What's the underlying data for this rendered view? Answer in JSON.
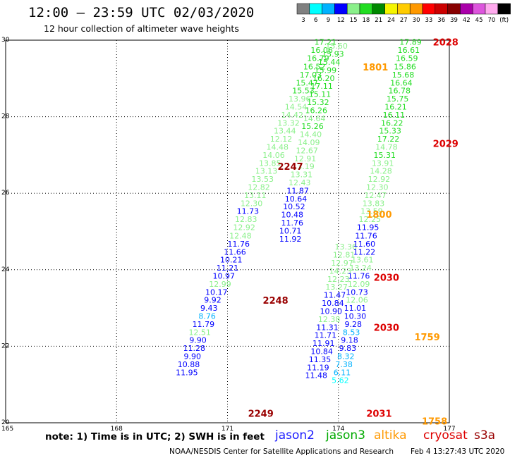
{
  "title": "12:00 – 23:59 UTC 02/03/2020",
  "subtitle": "12 hour collection of altimeter wave heights",
  "note": "note: 1) Time is in UTC; 2) SWH is in feet",
  "credit": "NOAA/NESDIS Center for Satellite Applications and Research",
  "credit_time": "Feb  4 13:27:43 UTC 2020",
  "satellites": [
    {
      "name": "jason2",
      "color": "#1a1aff"
    },
    {
      "name": "jason3",
      "color": "#00aa00"
    },
    {
      "name": "altika",
      "color": "#ff9900"
    },
    {
      "name": "cryosat",
      "color": "#dd0000"
    },
    {
      "name": "s3a",
      "color": "#990000"
    }
  ],
  "colorbar": {
    "labels": [
      "3",
      "6",
      "9",
      "12",
      "15",
      "18",
      "21",
      "24",
      "27",
      "30",
      "33",
      "36",
      "39",
      "42",
      "45",
      "70",
      "(ft)"
    ],
    "colors": [
      "#808080",
      "#00ffff",
      "#00b2ff",
      "#0000ff",
      "#8af08a",
      "#22dd22",
      "#008800",
      "#f5f500",
      "#ffcc00",
      "#ff9900",
      "#ff0000",
      "#cc0000",
      "#880000",
      "#aa00aa",
      "#dd55dd",
      "#ffaaee",
      "#000000"
    ]
  },
  "chart_data": {
    "type": "scatter",
    "title": "12:00 – 23:59 UTC 02/03/2020",
    "subtitle": "12 hour collection of altimeter wave heights",
    "xlim": [
      165,
      177
    ],
    "ylim": [
      20,
      30
    ],
    "xticks": [
      165,
      168,
      171,
      174,
      177
    ],
    "yticks": [
      20,
      22,
      24,
      26,
      28,
      30
    ],
    "grid": true,
    "units": "ft",
    "point_labels": [
      {
        "x": 176.9,
        "y": 29.95,
        "text": "2028",
        "color": "#dd0000"
      },
      {
        "x": 175.0,
        "y": 29.3,
        "text": "1801",
        "color": "#ff9900"
      },
      {
        "x": 176.9,
        "y": 27.3,
        "text": "2029",
        "color": "#dd0000"
      },
      {
        "x": 172.7,
        "y": 26.7,
        "text": "2247",
        "color": "#990000"
      },
      {
        "x": 175.1,
        "y": 25.45,
        "text": "1800",
        "color": "#ff9900"
      },
      {
        "x": 175.3,
        "y": 23.8,
        "text": "2030",
        "color": "#dd0000"
      },
      {
        "x": 172.3,
        "y": 23.2,
        "text": "2248",
        "color": "#990000"
      },
      {
        "x": 175.3,
        "y": 22.5,
        "text": "2030",
        "color": "#dd0000"
      },
      {
        "x": 176.4,
        "y": 22.25,
        "text": "1759",
        "color": "#ff9900"
      },
      {
        "x": 171.9,
        "y": 20.25,
        "text": "2249",
        "color": "#990000"
      },
      {
        "x": 175.1,
        "y": 20.25,
        "text": "2031",
        "color": "#dd0000"
      },
      {
        "x": 176.6,
        "y": 20.05,
        "text": "1758",
        "color": "#ff9900"
      }
    ],
    "series": [
      {
        "satellite": "s3a",
        "points": [
          {
            "x": 173.65,
            "y": 29.95,
            "v": "17.21",
            "c": "#22dd22"
          },
          {
            "x": 173.55,
            "y": 29.74,
            "v": "16.06",
            "c": "#22dd22"
          },
          {
            "x": 173.45,
            "y": 29.53,
            "v": "16.79",
            "c": "#22dd22"
          },
          {
            "x": 173.35,
            "y": 29.31,
            "v": "16.52",
            "c": "#22dd22"
          },
          {
            "x": 173.25,
            "y": 29.1,
            "v": "17.03",
            "c": "#22dd22"
          },
          {
            "x": 173.15,
            "y": 28.89,
            "v": "15.47",
            "c": "#22dd22"
          },
          {
            "x": 173.05,
            "y": 28.68,
            "v": "15.53",
            "c": "#22dd22"
          },
          {
            "x": 172.95,
            "y": 28.47,
            "v": "13.96",
            "c": "#8af08a"
          },
          {
            "x": 172.85,
            "y": 28.26,
            "v": "14.54",
            "c": "#8af08a"
          },
          {
            "x": 172.75,
            "y": 28.05,
            "v": "14.42",
            "c": "#8af08a"
          },
          {
            "x": 172.65,
            "y": 27.84,
            "v": "13.32",
            "c": "#8af08a"
          },
          {
            "x": 172.55,
            "y": 27.63,
            "v": "13.44",
            "c": "#8af08a"
          },
          {
            "x": 172.45,
            "y": 27.42,
            "v": "12.12",
            "c": "#8af08a"
          },
          {
            "x": 172.35,
            "y": 27.21,
            "v": "14.48",
            "c": "#8af08a"
          },
          {
            "x": 172.25,
            "y": 27.0,
            "v": "14.06",
            "c": "#8af08a"
          },
          {
            "x": 172.15,
            "y": 26.79,
            "v": "13.85",
            "c": "#8af08a"
          },
          {
            "x": 172.05,
            "y": 26.58,
            "v": "13.13",
            "c": "#8af08a"
          },
          {
            "x": 171.95,
            "y": 26.37,
            "v": "13.53",
            "c": "#8af08a"
          },
          {
            "x": 171.85,
            "y": 26.16,
            "v": "12.82",
            "c": "#8af08a"
          },
          {
            "x": 171.75,
            "y": 25.95,
            "v": "13.11",
            "c": "#8af08a"
          },
          {
            "x": 171.65,
            "y": 25.74,
            "v": "12.30",
            "c": "#8af08a"
          },
          {
            "x": 171.55,
            "y": 25.53,
            "v": "11.73",
            "c": "#0000ff"
          },
          {
            "x": 171.5,
            "y": 25.32,
            "v": "12.83",
            "c": "#8af08a"
          },
          {
            "x": 171.45,
            "y": 25.11,
            "v": "12.92",
            "c": "#8af08a"
          },
          {
            "x": 171.35,
            "y": 24.89,
            "v": "12.48",
            "c": "#8af08a"
          },
          {
            "x": 171.3,
            "y": 24.68,
            "v": "11.76",
            "c": "#0000ff"
          },
          {
            "x": 171.2,
            "y": 24.47,
            "v": "11.66",
            "c": "#0000ff"
          },
          {
            "x": 171.1,
            "y": 24.26,
            "v": "10.21",
            "c": "#0000ff"
          },
          {
            "x": 171.0,
            "y": 24.05,
            "v": "11.21",
            "c": "#0000ff"
          },
          {
            "x": 170.9,
            "y": 23.84,
            "v": "10.97",
            "c": "#0000ff"
          },
          {
            "x": 170.8,
            "y": 23.63,
            "v": "12.99",
            "c": "#8af08a"
          },
          {
            "x": 170.7,
            "y": 23.42,
            "v": "10.17",
            "c": "#0000ff"
          },
          {
            "x": 170.6,
            "y": 23.21,
            "v": "9.92",
            "c": "#0000ff"
          },
          {
            "x": 170.5,
            "y": 23.0,
            "v": "9.43",
            "c": "#0000ff"
          },
          {
            "x": 170.45,
            "y": 22.79,
            "v": "8.76",
            "c": "#00b2ff"
          },
          {
            "x": 170.35,
            "y": 22.58,
            "v": "11.79",
            "c": "#0000ff"
          },
          {
            "x": 170.25,
            "y": 22.37,
            "v": "12.51",
            "c": "#8af08a"
          },
          {
            "x": 170.2,
            "y": 22.16,
            "v": "9.90",
            "c": "#0000ff"
          },
          {
            "x": 170.1,
            "y": 21.95,
            "v": "11.28",
            "c": "#0000ff"
          },
          {
            "x": 170.05,
            "y": 21.74,
            "v": "9.90",
            "c": "#0000ff"
          },
          {
            "x": 169.95,
            "y": 21.53,
            "v": "10.88",
            "c": "#0000ff"
          },
          {
            "x": 169.9,
            "y": 21.32,
            "v": "11.95",
            "c": "#0000ff"
          }
        ]
      },
      {
        "satellite": "altika",
        "points": [
          {
            "x": 173.95,
            "y": 29.85,
            "v": "15.60",
            "c": "#8af08a"
          },
          {
            "x": 173.85,
            "y": 29.64,
            "v": "15.93",
            "c": "#22dd22"
          },
          {
            "x": 173.75,
            "y": 29.43,
            "v": "15.44",
            "c": "#22dd22"
          },
          {
            "x": 173.65,
            "y": 29.22,
            "v": "15.99",
            "c": "#22dd22"
          },
          {
            "x": 173.6,
            "y": 29.01,
            "v": "16.20",
            "c": "#22dd22"
          },
          {
            "x": 173.55,
            "y": 28.8,
            "v": "17.11",
            "c": "#22dd22"
          },
          {
            "x": 173.5,
            "y": 28.59,
            "v": "15.11",
            "c": "#22dd22"
          },
          {
            "x": 173.45,
            "y": 28.38,
            "v": "15.32",
            "c": "#22dd22"
          },
          {
            "x": 173.4,
            "y": 28.17,
            "v": "16.26",
            "c": "#22dd22"
          },
          {
            "x": 173.35,
            "y": 27.96,
            "v": "14.64",
            "c": "#8af08a"
          },
          {
            "x": 173.3,
            "y": 27.75,
            "v": "15.26",
            "c": "#22dd22"
          },
          {
            "x": 173.25,
            "y": 27.54,
            "v": "14.40",
            "c": "#8af08a"
          },
          {
            "x": 173.2,
            "y": 27.33,
            "v": "14.09",
            "c": "#8af08a"
          },
          {
            "x": 173.15,
            "y": 27.12,
            "v": "12.67",
            "c": "#8af08a"
          },
          {
            "x": 173.1,
            "y": 26.91,
            "v": "12.91",
            "c": "#8af08a"
          },
          {
            "x": 173.05,
            "y": 26.7,
            "v": "13.19",
            "c": "#8af08a"
          },
          {
            "x": 173.0,
            "y": 26.49,
            "v": "13.31",
            "c": "#8af08a"
          },
          {
            "x": 172.95,
            "y": 26.28,
            "v": "12.43",
            "c": "#8af08a"
          },
          {
            "x": 172.9,
            "y": 26.07,
            "v": "11.87",
            "c": "#0000ff"
          },
          {
            "x": 172.85,
            "y": 25.86,
            "v": "10.64",
            "c": "#0000ff"
          },
          {
            "x": 172.8,
            "y": 25.65,
            "v": "10.52",
            "c": "#0000ff"
          },
          {
            "x": 172.75,
            "y": 25.44,
            "v": "10.48",
            "c": "#0000ff"
          },
          {
            "x": 172.75,
            "y": 25.23,
            "v": "11.76",
            "c": "#0000ff"
          },
          {
            "x": 172.7,
            "y": 25.02,
            "v": "10.71",
            "c": "#0000ff"
          },
          {
            "x": 172.7,
            "y": 24.81,
            "v": "11.92",
            "c": "#0000ff"
          }
        ]
      },
      {
        "satellite": "jason3",
        "points": [
          {
            "x": 174.2,
            "y": 24.6,
            "v": "13.36",
            "c": "#8af08a"
          },
          {
            "x": 174.15,
            "y": 24.39,
            "v": "12.81",
            "c": "#8af08a"
          },
          {
            "x": 174.1,
            "y": 24.18,
            "v": "12.97",
            "c": "#8af08a"
          },
          {
            "x": 174.05,
            "y": 23.97,
            "v": "14.23",
            "c": "#8af08a"
          },
          {
            "x": 174.0,
            "y": 23.76,
            "v": "12.23",
            "c": "#8af08a"
          },
          {
            "x": 173.95,
            "y": 23.55,
            "v": "13.27",
            "c": "#8af08a"
          },
          {
            "x": 173.9,
            "y": 23.34,
            "v": "11.47",
            "c": "#0000ff"
          },
          {
            "x": 173.85,
            "y": 23.13,
            "v": "10.84",
            "c": "#0000ff"
          },
          {
            "x": 173.8,
            "y": 22.92,
            "v": "10.90",
            "c": "#0000ff"
          },
          {
            "x": 173.75,
            "y": 22.71,
            "v": "12.38",
            "c": "#8af08a"
          },
          {
            "x": 173.7,
            "y": 22.5,
            "v": "11.31",
            "c": "#0000ff"
          },
          {
            "x": 173.65,
            "y": 22.29,
            "v": "11.71",
            "c": "#0000ff"
          },
          {
            "x": 173.6,
            "y": 22.08,
            "v": "11.91",
            "c": "#0000ff"
          },
          {
            "x": 173.55,
            "y": 21.87,
            "v": "10.84",
            "c": "#0000ff"
          },
          {
            "x": 173.5,
            "y": 21.66,
            "v": "11.35",
            "c": "#0000ff"
          },
          {
            "x": 173.45,
            "y": 21.45,
            "v": "11.19",
            "c": "#0000ff"
          },
          {
            "x": 173.4,
            "y": 21.24,
            "v": "11.48",
            "c": "#0000ff"
          }
        ]
      },
      {
        "satellite": "cryosat",
        "points": [
          {
            "x": 175.95,
            "y": 29.95,
            "v": "17.89",
            "c": "#22dd22"
          },
          {
            "x": 175.9,
            "y": 29.74,
            "v": "16.61",
            "c": "#22dd22"
          },
          {
            "x": 175.85,
            "y": 29.53,
            "v": "16.59",
            "c": "#22dd22"
          },
          {
            "x": 175.8,
            "y": 29.31,
            "v": "15.86",
            "c": "#22dd22"
          },
          {
            "x": 175.75,
            "y": 29.1,
            "v": "15.68",
            "c": "#22dd22"
          },
          {
            "x": 175.7,
            "y": 28.89,
            "v": "16.64",
            "c": "#22dd22"
          },
          {
            "x": 175.65,
            "y": 28.68,
            "v": "16.78",
            "c": "#22dd22"
          },
          {
            "x": 175.6,
            "y": 28.47,
            "v": "15.75",
            "c": "#22dd22"
          },
          {
            "x": 175.55,
            "y": 28.26,
            "v": "16.21",
            "c": "#22dd22"
          },
          {
            "x": 175.5,
            "y": 28.05,
            "v": "16.11",
            "c": "#22dd22"
          },
          {
            "x": 175.45,
            "y": 27.84,
            "v": "16.22",
            "c": "#22dd22"
          },
          {
            "x": 175.4,
            "y": 27.63,
            "v": "15.33",
            "c": "#22dd22"
          },
          {
            "x": 175.35,
            "y": 27.42,
            "v": "17.22",
            "c": "#22dd22"
          },
          {
            "x": 175.3,
            "y": 27.21,
            "v": "14.78",
            "c": "#8af08a"
          },
          {
            "x": 175.25,
            "y": 27.0,
            "v": "15.31",
            "c": "#22dd22"
          },
          {
            "x": 175.2,
            "y": 26.79,
            "v": "13.91",
            "c": "#8af08a"
          },
          {
            "x": 175.15,
            "y": 26.58,
            "v": "14.28",
            "c": "#8af08a"
          },
          {
            "x": 175.1,
            "y": 26.37,
            "v": "12.92",
            "c": "#8af08a"
          },
          {
            "x": 175.05,
            "y": 26.16,
            "v": "12.30",
            "c": "#8af08a"
          },
          {
            "x": 175.0,
            "y": 25.95,
            "v": "12.47",
            "c": "#8af08a"
          },
          {
            "x": 174.95,
            "y": 25.74,
            "v": "13.83",
            "c": "#8af08a"
          },
          {
            "x": 174.9,
            "y": 25.53,
            "v": "13.59",
            "c": "#8af08a"
          },
          {
            "x": 174.85,
            "y": 25.32,
            "v": "12.25",
            "c": "#8af08a"
          },
          {
            "x": 174.8,
            "y": 25.11,
            "v": "11.95",
            "c": "#0000ff"
          },
          {
            "x": 174.75,
            "y": 24.89,
            "v": "11.76",
            "c": "#0000ff"
          },
          {
            "x": 174.7,
            "y": 24.68,
            "v": "11.60",
            "c": "#0000ff"
          },
          {
            "x": 174.7,
            "y": 24.47,
            "v": "11.22",
            "c": "#0000ff"
          },
          {
            "x": 174.65,
            "y": 24.26,
            "v": "13.61",
            "c": "#8af08a"
          },
          {
            "x": 174.6,
            "y": 24.05,
            "v": "13.24",
            "c": "#8af08a"
          },
          {
            "x": 174.55,
            "y": 23.84,
            "v": "11.76",
            "c": "#0000ff"
          },
          {
            "x": 174.55,
            "y": 23.63,
            "v": "12.09",
            "c": "#8af08a"
          },
          {
            "x": 174.5,
            "y": 23.42,
            "v": "10.73",
            "c": "#0000ff"
          },
          {
            "x": 174.5,
            "y": 23.21,
            "v": "12.06",
            "c": "#8af08a"
          },
          {
            "x": 174.45,
            "y": 23.0,
            "v": "11.01",
            "c": "#0000ff"
          },
          {
            "x": 174.45,
            "y": 22.79,
            "v": "10.30",
            "c": "#0000ff"
          },
          {
            "x": 174.4,
            "y": 22.58,
            "v": "9.28",
            "c": "#0000ff"
          },
          {
            "x": 174.35,
            "y": 22.37,
            "v": "8.53",
            "c": "#00b2ff"
          },
          {
            "x": 174.3,
            "y": 22.16,
            "v": "9.18",
            "c": "#0000ff"
          },
          {
            "x": 174.25,
            "y": 21.95,
            "v": "9.83",
            "c": "#0000ff"
          },
          {
            "x": 174.2,
            "y": 21.74,
            "v": "8.32",
            "c": "#00b2ff"
          },
          {
            "x": 174.15,
            "y": 21.53,
            "v": "7.38",
            "c": "#00b2ff"
          },
          {
            "x": 174.1,
            "y": 21.32,
            "v": "6.11",
            "c": "#00b2ff"
          },
          {
            "x": 174.05,
            "y": 21.11,
            "v": "5.62",
            "c": "#00ffff"
          }
        ]
      }
    ]
  }
}
